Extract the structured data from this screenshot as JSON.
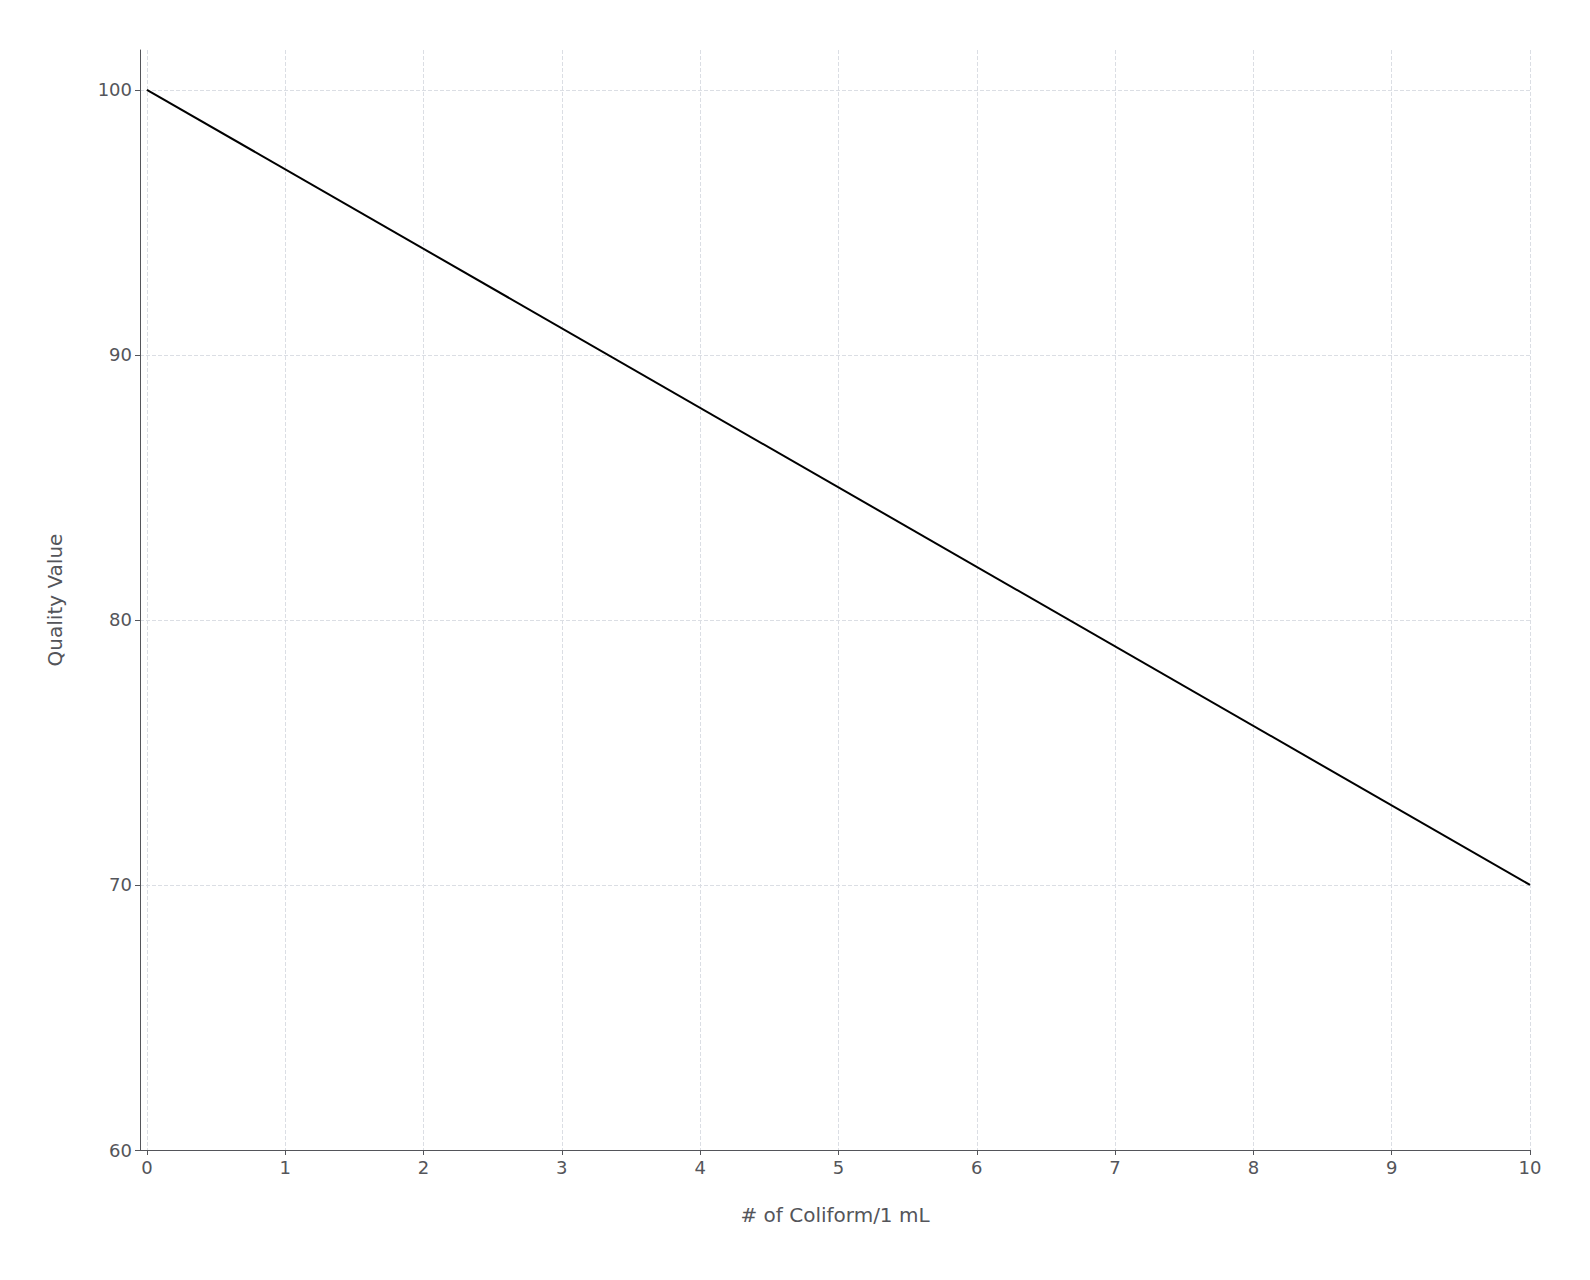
{
  "chart_data": {
    "type": "line",
    "x": [
      0,
      10
    ],
    "values": [
      100,
      70
    ],
    "xlabel": "# of Coliform/1 mL",
    "ylabel": "Quality Value",
    "xlim": [
      -0.05,
      10
    ],
    "ylim": [
      60,
      101.5
    ],
    "xticks": [
      0,
      1,
      2,
      3,
      4,
      5,
      6,
      7,
      8,
      9,
      10
    ],
    "yticks": [
      60,
      70,
      80,
      90,
      100
    ],
    "color": "#000000",
    "grid": true
  }
}
